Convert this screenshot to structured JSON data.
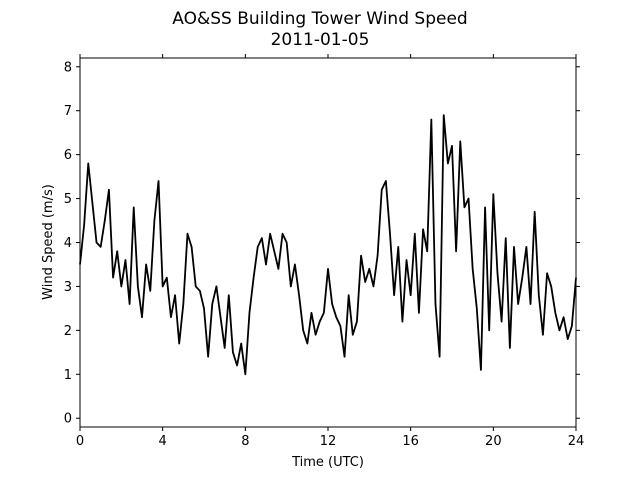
{
  "chart_data": {
    "type": "line",
    "title": "AO&SS Building Tower Wind Speed",
    "subtitle": "2011-01-05",
    "xlabel": "Time (UTC)",
    "ylabel": "Wind Speed (m/s)",
    "x": [
      0,
      0.2,
      0.4,
      0.6,
      0.8,
      1,
      1.2,
      1.4,
      1.6,
      1.8,
      2,
      2.2,
      2.4,
      2.6,
      2.8,
      3,
      3.2,
      3.4,
      3.6,
      3.8,
      4,
      4.2,
      4.4,
      4.6,
      4.8,
      5,
      5.2,
      5.4,
      5.6,
      5.8,
      6,
      6.2,
      6.4,
      6.6,
      6.8,
      7,
      7.2,
      7.4,
      7.6,
      7.8,
      8,
      8.2,
      8.4,
      8.6,
      8.8,
      9,
      9.2,
      9.4,
      9.6,
      9.8,
      10,
      10.2,
      10.4,
      10.6,
      10.8,
      11,
      11.2,
      11.4,
      11.6,
      11.8,
      12,
      12.2,
      12.4,
      12.6,
      12.8,
      13,
      13.2,
      13.4,
      13.6,
      13.8,
      14,
      14.2,
      14.4,
      14.6,
      14.8,
      15,
      15.2,
      15.4,
      15.6,
      15.8,
      16,
      16.2,
      16.4,
      16.6,
      16.8,
      17,
      17.2,
      17.4,
      17.6,
      17.8,
      18,
      18.2,
      18.4,
      18.6,
      18.8,
      19,
      19.2,
      19.4,
      19.6,
      19.8,
      20,
      20.2,
      20.4,
      20.6,
      20.8,
      21,
      21.2,
      21.4,
      21.6,
      21.8,
      22,
      22.2,
      22.4,
      22.6,
      22.8,
      23,
      23.2,
      23.4,
      23.6,
      23.8,
      24
    ],
    "series": [
      {
        "color": "#000000",
        "values": [
          3.5,
          4.4,
          5.8,
          4.9,
          4.0,
          3.9,
          4.5,
          5.2,
          3.2,
          3.8,
          3.0,
          3.6,
          2.6,
          4.8,
          3.0,
          2.3,
          3.5,
          2.9,
          4.5,
          5.4,
          3.0,
          3.2,
          2.3,
          2.8,
          1.7,
          2.6,
          4.2,
          3.9,
          3.0,
          2.9,
          2.5,
          1.4,
          2.6,
          3.0,
          2.3,
          1.6,
          2.8,
          1.5,
          1.2,
          1.7,
          1.0,
          2.4,
          3.2,
          3.9,
          4.1,
          3.5,
          4.2,
          3.8,
          3.4,
          4.2,
          4.0,
          3.0,
          3.5,
          2.8,
          2.0,
          1.7,
          2.4,
          1.9,
          2.2,
          2.4,
          3.4,
          2.6,
          2.3,
          2.1,
          1.4,
          2.8,
          1.9,
          2.2,
          3.7,
          3.1,
          3.4,
          3.0,
          3.7,
          5.2,
          5.4,
          4.2,
          2.8,
          3.9,
          2.2,
          3.6,
          2.8,
          4.2,
          2.4,
          4.3,
          3.8,
          6.8,
          2.6,
          1.4,
          6.9,
          5.8,
          6.2,
          3.8,
          6.3,
          4.8,
          5.0,
          3.4,
          2.5,
          1.1,
          4.8,
          2.0,
          5.1,
          3.3,
          2.2,
          4.1,
          1.6,
          3.9,
          2.6,
          3.2,
          3.9,
          2.6,
          4.7,
          2.8,
          1.9,
          3.3,
          3.0,
          2.4,
          2.0,
          2.3,
          1.8,
          2.1,
          3.2
        ]
      }
    ],
    "xlim": [
      0,
      24
    ],
    "xticks": [
      0,
      4,
      8,
      12,
      16,
      20,
      24
    ],
    "ylim": [
      -0.2,
      8.2
    ],
    "yticks": [
      0,
      1,
      2,
      3,
      4,
      5,
      6,
      7,
      8
    ],
    "grid": false
  }
}
